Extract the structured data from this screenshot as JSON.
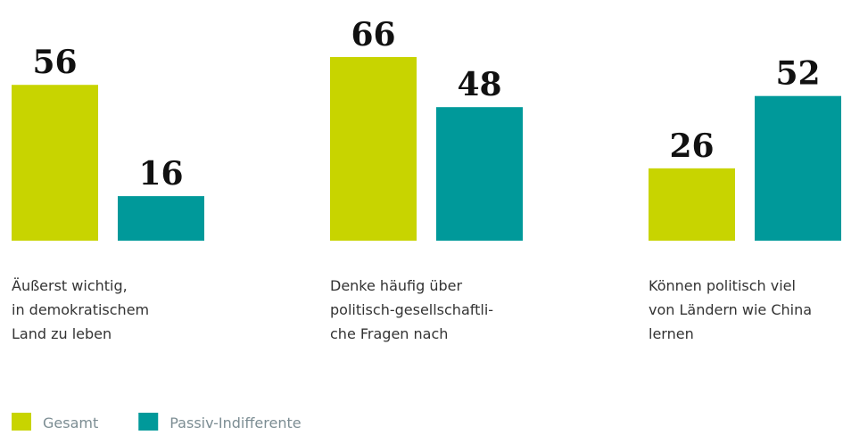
{
  "chart_data": {
    "type": "bar",
    "categories": [
      [
        "Äußerst wichtig,",
        "in demokratischem",
        "Land zu leben"
      ],
      [
        "Denke häufig über",
        "politisch-gesellschaftli-",
        "che Fragen nach"
      ],
      [
        "Können politisch viel",
        "von Ländern wie China",
        "lernen"
      ]
    ],
    "series": [
      {
        "name": "Gesamt",
        "color": "#c8d400",
        "values": [
          56,
          66,
          26
        ]
      },
      {
        "name": "Passiv-Indifferente",
        "color": "#00999a",
        "values": [
          16,
          48,
          52
        ]
      }
    ]
  }
}
